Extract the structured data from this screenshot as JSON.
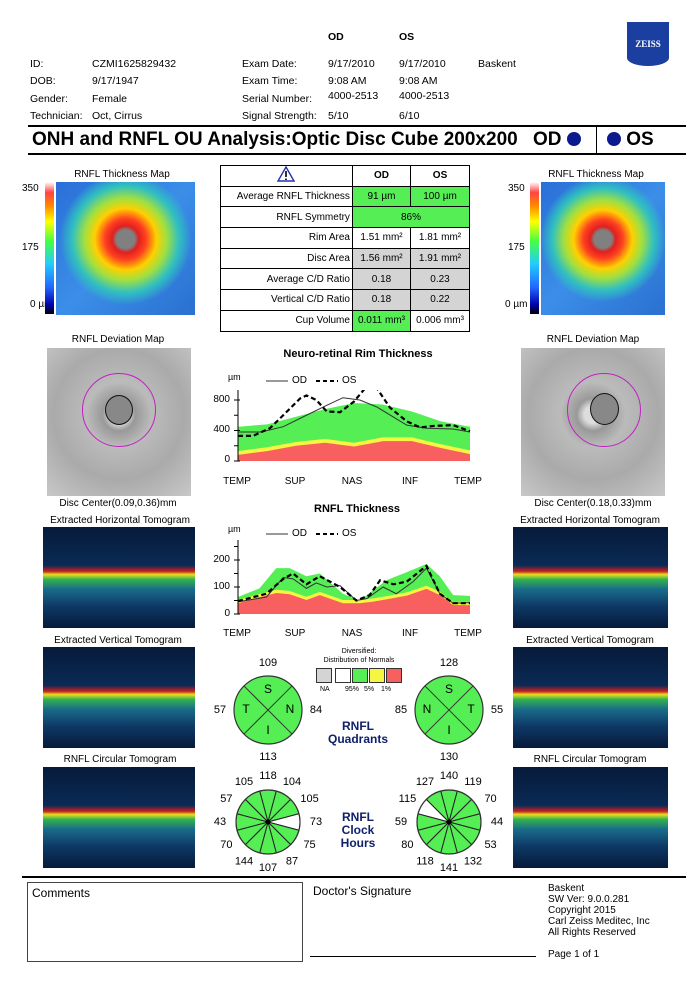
{
  "header": {
    "od": "OD",
    "os": "OS",
    "logo": "ZEISS",
    "patient": [
      {
        "label": "ID:",
        "value": "CZMI1625829432"
      },
      {
        "label": "DOB:",
        "value": "9/17/1947"
      },
      {
        "label": "Gender:",
        "value": "Female"
      },
      {
        "label": "Technician:",
        "value": "Oct, Cirrus"
      }
    ],
    "exam": [
      {
        "label": "Exam Date:",
        "od": "9/17/2010",
        "os": "9/17/2010"
      },
      {
        "label": "Exam Time:",
        "od": "9:08 AM",
        "os": "9:08 AM"
      },
      {
        "label": "Serial Number:",
        "od": "4000-2513",
        "os": "4000-2513"
      },
      {
        "label": "Signal Strength:",
        "od": "5/10",
        "os": "6/10"
      }
    ],
    "institution": "Baskent"
  },
  "title": {
    "text": "ONH and RNFL OU Analysis:Optic Disc Cube 200x200",
    "od": "OD",
    "os": "OS",
    "eye_dot_color": "#0b1a8c"
  },
  "maps": {
    "thickness_title": "RNFL Thickness Map",
    "scale": {
      "max": "350",
      "mid": "175",
      "min": "0 µm"
    },
    "deviation_title": "RNFL Deviation Map",
    "od_disc_center": "Disc Center(0.09,0.36)mm",
    "os_disc_center": "Disc Center(0.18,0.33)mm",
    "horizontal": "Extracted Horizontal Tomogram",
    "vertical": "Extracted Vertical Tomogram",
    "circular": "RNFL Circular Tomogram"
  },
  "table": {
    "warning_icon": "warning-triangle-icon",
    "col_od": "OD",
    "col_os": "OS",
    "rows": [
      {
        "label": "Average RNFL Thickness",
        "od": "91 µm",
        "os": "100 µm",
        "od_status": "green",
        "os_status": "green"
      },
      {
        "label": "RNFL Symmetry",
        "value": "86%",
        "status": "green"
      },
      {
        "label": "Rim Area",
        "od": "1.51 mm²",
        "os": "1.81 mm²",
        "od_status": "white",
        "os_status": "white"
      },
      {
        "label": "Disc Area",
        "od": "1.56 mm²",
        "os": "1.91 mm²",
        "od_status": "gray",
        "os_status": "gray"
      },
      {
        "label": "Average C/D Ratio",
        "od": "0.18",
        "os": "0.23",
        "od_status": "gray",
        "os_status": "gray"
      },
      {
        "label": "Vertical C/D Ratio",
        "od": "0.18",
        "os": "0.22",
        "od_status": "gray",
        "os_status": "gray"
      },
      {
        "label": "Cup Volume",
        "od": "0.011 mm³",
        "os": "0.006 mm³",
        "od_status": "green",
        "os_status": "white"
      }
    ]
  },
  "chart_data": [
    {
      "type": "line",
      "title": "Neuro-retinal Rim Thickness",
      "ylabel": "µm",
      "yticks": [
        "800",
        "400",
        "0"
      ],
      "ylim": [
        0,
        1000
      ],
      "categories": [
        "TEMP",
        "SUP",
        "NAS",
        "INF",
        "TEMP"
      ],
      "legend": {
        "od": "OD",
        "os": "OS",
        "placement": "top"
      },
      "normative_x": [
        0,
        0.5,
        1,
        1.5,
        2,
        2.5,
        3,
        3.5,
        4
      ],
      "normative": {
        "green_upper": [
          450,
          480,
          580,
          680,
          760,
          740,
          650,
          520,
          450
        ],
        "yellow_upper": [
          130,
          180,
          250,
          290,
          240,
          310,
          310,
          220,
          140
        ],
        "red_upper": [
          80,
          130,
          200,
          240,
          190,
          260,
          260,
          170,
          90
        ]
      },
      "series": [
        {
          "name": "OD",
          "style": "solid",
          "x": [
            0,
            0.4,
            0.78,
            1.18,
            1.53,
            1.81,
            2.1,
            2.39,
            2.91,
            3.25,
            3.71,
            4
          ],
          "y": [
            380,
            380,
            450,
            600,
            730,
            830,
            800,
            710,
            470,
            430,
            420,
            380
          ]
        },
        {
          "name": "OS",
          "style": "dashed",
          "x": [
            0,
            0.26,
            0.55,
            0.78,
            1.07,
            1.18,
            1.35,
            1.53,
            1.76,
            2.0,
            2.22,
            2.39,
            2.62,
            2.91,
            3.14,
            3.37,
            3.71,
            4
          ],
          "y": [
            330,
            330,
            430,
            600,
            820,
            860,
            800,
            650,
            640,
            780,
            980,
            960,
            700,
            520,
            440,
            460,
            470,
            390
          ]
        }
      ],
      "colors": {
        "normal": "#55ee55",
        "borderline": "#f5f542",
        "outside": "#f86060"
      }
    },
    {
      "type": "line",
      "title": "RNFL Thickness",
      "ylabel": "µm",
      "yticks": [
        "200",
        "100",
        "0"
      ],
      "ylim": [
        0,
        250
      ],
      "categories": [
        "TEMP",
        "SUP",
        "NAS",
        "INF",
        "TEMP"
      ],
      "legend": {
        "od": "OD",
        "os": "OS",
        "placement": "top"
      },
      "normative_x": [
        0,
        0.37,
        0.66,
        0.89,
        1.18,
        1.41,
        1.81,
        2.1,
        2.33,
        2.56,
        2.91,
        3.25,
        3.48,
        3.71,
        4
      ],
      "normative": {
        "green_upper": [
          63,
          95,
          170,
          170,
          140,
          150,
          75,
          50,
          88,
          125,
          155,
          185,
          140,
          70,
          67
        ],
        "yellow_upper": [
          52,
          74,
          90,
          85,
          64,
          82,
          52,
          52,
          58,
          66,
          80,
          105,
          82,
          45,
          45
        ],
        "red_upper": [
          40,
          62,
          78,
          73,
          52,
          70,
          40,
          40,
          46,
          54,
          68,
          93,
          70,
          33,
          33
        ]
      },
      "series": [
        {
          "name": "OD",
          "style": "solid",
          "x": [
            0,
            0.49,
            0.78,
            0.95,
            1.18,
            1.35,
            1.53,
            1.76,
            2.04,
            2.22,
            2.5,
            2.73,
            3.02,
            3.25,
            3.48,
            3.71,
            4
          ],
          "y": [
            45,
            63,
            135,
            130,
            95,
            115,
            100,
            105,
            50,
            57,
            100,
            75,
            120,
            170,
            75,
            40,
            42
          ]
        },
        {
          "name": "OS",
          "style": "dashed",
          "x": [
            0,
            0.49,
            0.78,
            0.95,
            1.18,
            1.41,
            1.76,
            2.04,
            2.27,
            2.45,
            2.68,
            2.91,
            3.25,
            3.48,
            3.71,
            4
          ],
          "y": [
            48,
            75,
            130,
            150,
            110,
            140,
            100,
            50,
            70,
            125,
            110,
            120,
            178,
            75,
            40,
            40
          ]
        }
      ],
      "colors": {
        "normal": "#55ee55",
        "borderline": "#f5f542",
        "outside": "#f86060"
      }
    }
  ],
  "legend_normals": {
    "title1": "Diversified:",
    "title2": "Distribution of Normals",
    "labels": [
      "NA",
      "95%",
      "5%",
      "1%"
    ],
    "colors": [
      "#d4d4d4",
      "#ffffff",
      "#55ee55",
      "#f5f542",
      "#f86060"
    ]
  },
  "quadrants": {
    "title1": "RNFL",
    "title2": "Quadrants",
    "od": {
      "S": "109",
      "T": "57",
      "N": "84",
      "I": "113"
    },
    "os": {
      "S": "128",
      "N": "85",
      "T": "55",
      "I": "130"
    },
    "letters": {
      "S": "S",
      "T": "T",
      "N": "N",
      "I": "I"
    }
  },
  "clock_hours": {
    "title1": "RNFL",
    "title2": "Clock",
    "title3": "Hours",
    "od": {
      "values": [
        "118",
        "104",
        "105",
        "73",
        "75",
        "87",
        "107",
        "144",
        "70",
        "43",
        "57",
        "105"
      ],
      "status": [
        "green",
        "green",
        "green",
        "white",
        "green",
        "green",
        "green",
        "green",
        "green",
        "green",
        "green",
        "green"
      ]
    },
    "os": {
      "values": [
        "140",
        "119",
        "70",
        "44",
        "53",
        "132",
        "141",
        "118",
        "80",
        "59",
        "115",
        "127"
      ],
      "status": [
        "green",
        "green",
        "green",
        "green",
        "green",
        "green",
        "green",
        "green",
        "green",
        "green",
        "white",
        "green"
      ]
    }
  },
  "footer": {
    "comments": "Comments",
    "signature": "Doctor's Signature",
    "info": [
      "Baskent",
      "SW Ver: 9.0.0.281",
      "Copyright 2015",
      "Carl Zeiss Meditec, Inc",
      "All Rights Reserved"
    ],
    "page": "Page 1 of 1"
  }
}
